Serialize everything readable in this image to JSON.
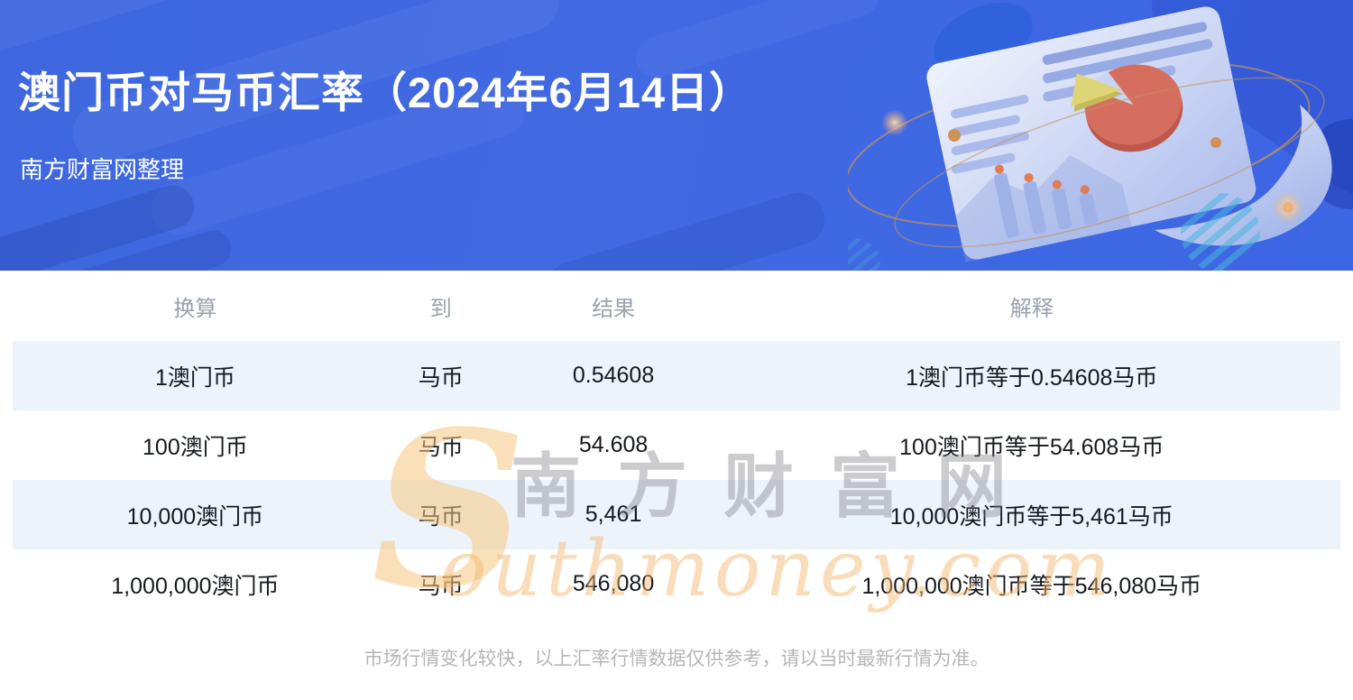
{
  "banner": {
    "title": "澳门币对马币汇率（2024年6月14日）",
    "subtitle": "南方财富网整理"
  },
  "table": {
    "headers": [
      "换算",
      "到",
      "结果",
      "解释"
    ],
    "rows": [
      [
        "1澳门币",
        "马币",
        "0.54608",
        "1澳门币等于0.54608马币"
      ],
      [
        "100澳门币",
        "马币",
        "54.608",
        "100澳门币等于54.608马币"
      ],
      [
        "10,000澳门币",
        "马币",
        "5,461",
        "10,000澳门币等于5,461马币"
      ],
      [
        "1,000,000澳门币",
        "马币",
        "546,080",
        "1,000,000澳门币等于546,080马币"
      ]
    ]
  },
  "chart_data": {
    "type": "table",
    "title": "澳门币对马币汇率（2024年6月14日）",
    "columns": [
      "换算",
      "到",
      "结果",
      "解释"
    ],
    "rows": [
      [
        "1澳门币",
        "马币",
        "0.54608",
        "1澳门币等于0.54608马币"
      ],
      [
        "100澳门币",
        "马币",
        "54.608",
        "100澳门币等于54.608马币"
      ],
      [
        "10,000澳门币",
        "马币",
        "5,461",
        "10,000澳门币等于5,461马币"
      ],
      [
        "1,000,000澳门币",
        "马币",
        "546,080",
        "1,000,000澳门币等于546,080马币"
      ]
    ],
    "base_rate": 0.54608
  },
  "watermark": {
    "initial": "S",
    "cn": "南方财富网",
    "en": "outhmoney.com"
  },
  "footer": {
    "disclaimer": "市场行情变化较快，以上汇率行情数据仅供参考，请以当时最新行情为准。"
  },
  "colors": {
    "banner_blue": "#4069e2",
    "row_alt_blue": "#edf3fb",
    "header_gray": "#9aa1ab",
    "body_text": "#15191e",
    "disclaimer_gray": "#b6b6b6",
    "watermark_tan": "#f2b870",
    "pie_red": "#d66e60",
    "pie_slice_yellow": "#ddd578"
  }
}
